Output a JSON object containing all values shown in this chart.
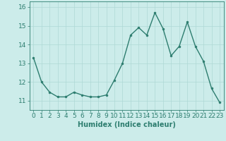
{
  "x": [
    0,
    1,
    2,
    3,
    4,
    5,
    6,
    7,
    8,
    9,
    10,
    11,
    12,
    13,
    14,
    15,
    16,
    17,
    18,
    19,
    20,
    21,
    22,
    23
  ],
  "y": [
    13.3,
    12.0,
    11.45,
    11.2,
    11.2,
    11.45,
    11.3,
    11.2,
    11.2,
    11.3,
    12.1,
    13.0,
    14.5,
    14.9,
    14.5,
    15.7,
    14.85,
    13.4,
    13.9,
    15.2,
    13.9,
    13.1,
    11.65,
    10.9
  ],
  "line_color": "#2d7d6f",
  "marker": "o",
  "markersize": 2.0,
  "linewidth": 1.0,
  "bg_color": "#ccecea",
  "grid_color": "#aed8d5",
  "xlabel": "Humidex (Indice chaleur)",
  "xlabel_fontsize": 7,
  "tick_fontsize": 6.5,
  "ylim": [
    10.5,
    16.3
  ],
  "yticks": [
    11,
    12,
    13,
    14,
    15,
    16
  ],
  "xticks": [
    0,
    1,
    2,
    3,
    4,
    5,
    6,
    7,
    8,
    9,
    10,
    11,
    12,
    13,
    14,
    15,
    16,
    17,
    18,
    19,
    20,
    21,
    22,
    23
  ],
  "xtick_labels": [
    "0",
    "1",
    "2",
    "3",
    "4",
    "5",
    "6",
    "7",
    "8",
    "9",
    "10",
    "11",
    "12",
    "13",
    "14",
    "15",
    "16",
    "17",
    "18",
    "19",
    "20",
    "21",
    "22",
    "23"
  ]
}
